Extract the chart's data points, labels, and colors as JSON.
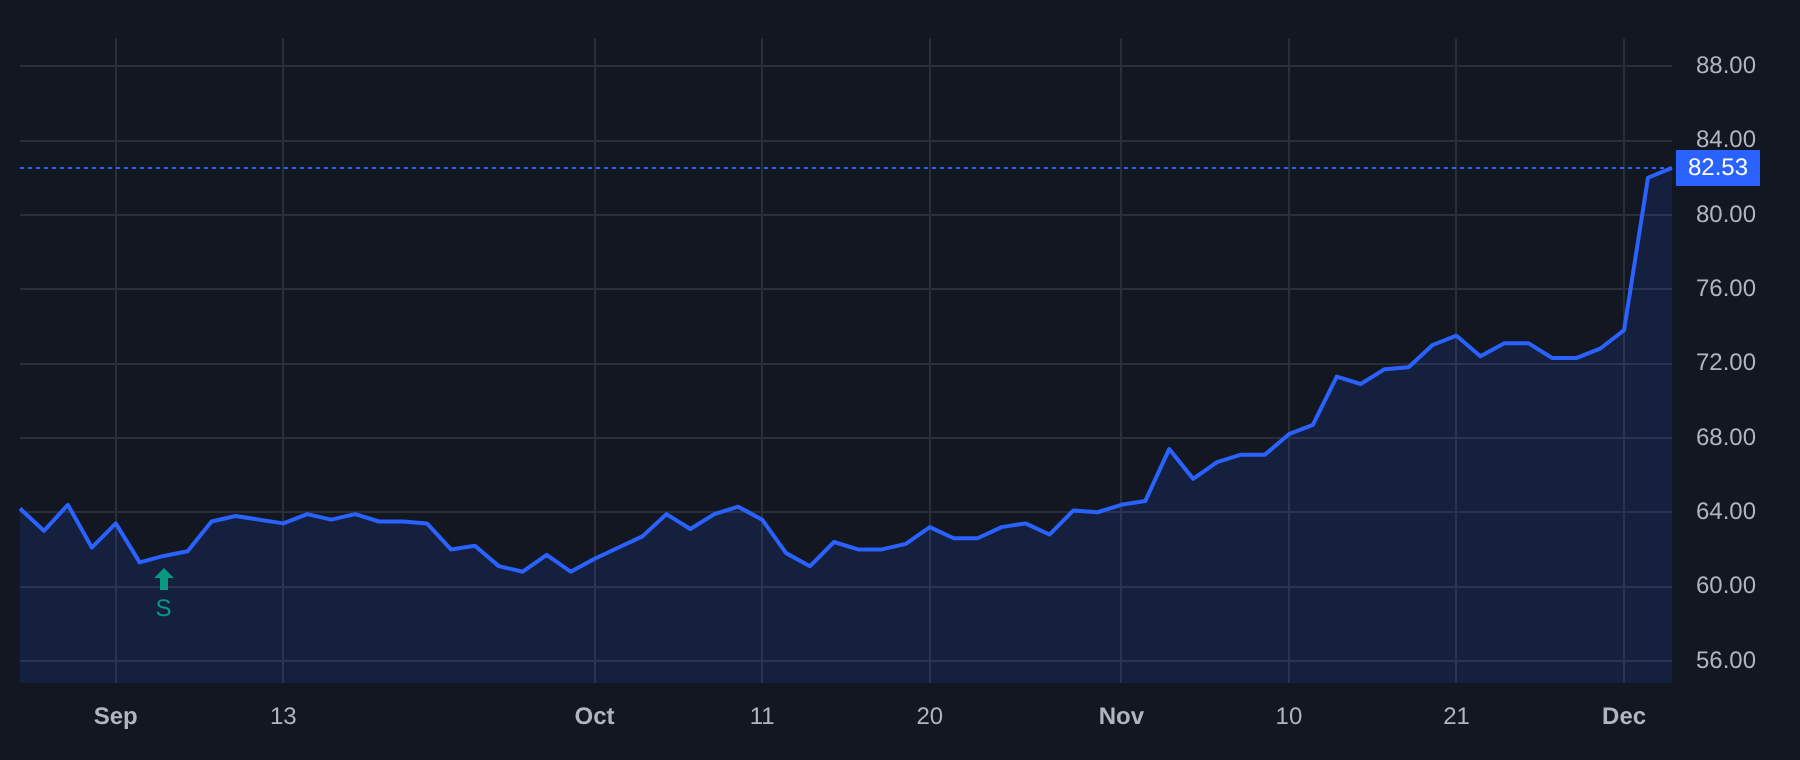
{
  "chart_data": {
    "type": "area",
    "categories": [
      null,
      null,
      null,
      null,
      "Sep",
      null,
      null,
      null,
      null,
      null,
      null,
      "13",
      null,
      null,
      null,
      null,
      null,
      null,
      null,
      null,
      null,
      null,
      null,
      null,
      "Oct",
      null,
      null,
      null,
      null,
      null,
      null,
      "11",
      null,
      null,
      null,
      null,
      null,
      null,
      "20",
      null,
      null,
      null,
      null,
      null,
      null,
      null,
      "Nov",
      null,
      null,
      null,
      null,
      null,
      null,
      "10",
      null,
      null,
      null,
      null,
      null,
      null,
      "21",
      null,
      null,
      null,
      null,
      null,
      null,
      "Dec",
      null,
      null
    ],
    "series": [
      {
        "color": "#2962ff",
        "values": [
          64.2,
          63.0,
          64.4,
          62.1,
          63.4,
          61.3,
          61.65,
          61.9,
          63.5,
          63.8,
          63.6,
          63.4,
          63.9,
          63.6,
          63.9,
          63.5,
          63.5,
          63.4,
          62.0,
          62.2,
          61.1,
          60.8,
          61.7,
          60.8,
          61.5,
          62.1,
          62.7,
          63.9,
          63.1,
          63.9,
          64.3,
          63.6,
          61.8,
          61.1,
          62.4,
          62.0,
          62.0,
          62.3,
          63.2,
          62.6,
          62.6,
          63.2,
          63.4,
          62.8,
          64.1,
          64.0,
          64.4,
          64.6,
          67.4,
          65.8,
          66.7,
          67.1,
          67.1,
          68.2,
          68.7,
          71.3,
          70.9,
          71.7,
          71.8,
          73.0,
          73.5,
          72.4,
          73.1,
          73.1,
          72.3,
          72.3,
          72.8,
          73.8,
          82.0,
          82.53
        ]
      }
    ],
    "ylim": [
      54.8,
      89.5
    ],
    "yticks": [
      {
        "value": 56,
        "label": "56.00"
      },
      {
        "value": 60,
        "label": "60.00"
      },
      {
        "value": 64,
        "label": "64.00"
      },
      {
        "value": 68,
        "label": "68.00"
      },
      {
        "value": 72,
        "label": "72.00"
      },
      {
        "value": 76,
        "label": "76.00"
      },
      {
        "value": 80,
        "label": "80.00"
      },
      {
        "value": 84,
        "label": "84.00"
      },
      {
        "value": 88,
        "label": "88.00"
      }
    ],
    "ref_lines": [
      {
        "axis": "y",
        "value": 82.53,
        "label": "82.53",
        "color": "#2962ff",
        "line_style": "dotted"
      }
    ],
    "annotations": [
      {
        "text": "S",
        "y": 61.65
      }
    ],
    "grid": true,
    "legend": false,
    "marker": "none",
    "line_style": "solid"
  }
}
